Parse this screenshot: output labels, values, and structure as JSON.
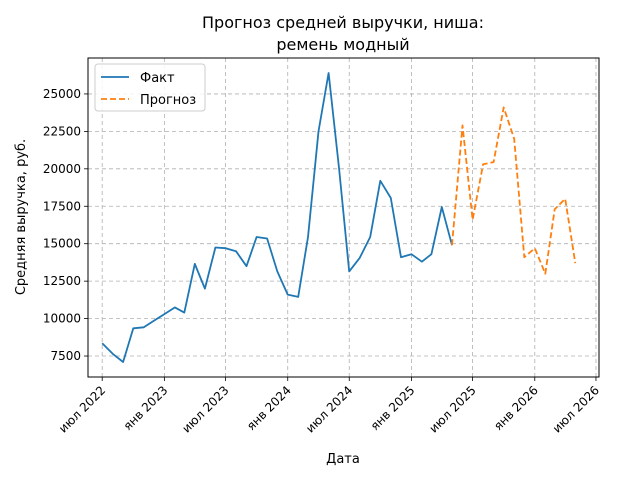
{
  "chart_data": {
    "type": "line",
    "title_line1": "Прогноз средней выручки, ниша:",
    "title_line2": "ремень модный",
    "xlabel": "Дата",
    "ylabel": "Средняя выручка, руб.",
    "grid": true,
    "legend_position": "top-left",
    "colors": {
      "fact": "#1f77b4",
      "forecast": "#ff7f0e",
      "grid": "#b0b0b0"
    },
    "x_ticks": [
      {
        "date": "2022-07-01",
        "label": "июл 2022"
      },
      {
        "date": "2023-01-01",
        "label": "янв 2023"
      },
      {
        "date": "2023-07-01",
        "label": "июл 2023"
      },
      {
        "date": "2024-01-01",
        "label": "янв 2024"
      },
      {
        "date": "2024-07-01",
        "label": "июл 2024"
      },
      {
        "date": "2025-01-01",
        "label": "янв 2025"
      },
      {
        "date": "2025-07-01",
        "label": "июл 2025"
      },
      {
        "date": "2026-01-01",
        "label": "янв 2026"
      },
      {
        "date": "2026-07-01",
        "label": "июл 2026"
      }
    ],
    "y_ticks": [
      {
        "value": 7500,
        "label": "7500"
      },
      {
        "value": 10000,
        "label": "10000"
      },
      {
        "value": 12500,
        "label": "12500"
      },
      {
        "value": 15000,
        "label": "15000"
      },
      {
        "value": 17500,
        "label": "17500"
      },
      {
        "value": 20000,
        "label": "20000"
      },
      {
        "value": 22500,
        "label": "22500"
      },
      {
        "value": 25000,
        "label": "25000"
      }
    ],
    "xlim": [
      "2022-05-20",
      "2026-07-10"
    ],
    "ylim": [
      6100,
      27400
    ],
    "series": [
      {
        "name": "Факт",
        "style": "solid",
        "x": [
          "2022-07-01",
          "2022-08-01",
          "2022-09-01",
          "2022-10-01",
          "2022-11-01",
          "2022-12-01",
          "2023-01-01",
          "2023-02-01",
          "2023-03-01",
          "2023-04-01",
          "2023-05-01",
          "2023-06-01",
          "2023-07-01",
          "2023-08-01",
          "2023-09-01",
          "2023-10-01",
          "2023-11-01",
          "2023-12-01",
          "2024-01-01",
          "2024-02-01",
          "2024-03-01",
          "2024-04-01",
          "2024-05-01",
          "2024-06-01",
          "2024-07-01",
          "2024-08-01",
          "2024-09-01",
          "2024-10-01",
          "2024-11-01",
          "2024-12-01",
          "2025-01-01",
          "2025-02-01",
          "2025-03-01",
          "2025-04-01",
          "2025-05-01"
        ],
        "y": [
          8350,
          7650,
          7100,
          9350,
          9420,
          9850,
          10300,
          10750,
          10400,
          13650,
          12000,
          14750,
          14700,
          14500,
          13500,
          15450,
          15350,
          13150,
          11600,
          11450,
          15450,
          22500,
          26400,
          20000,
          13150,
          14050,
          15450,
          19200,
          18050,
          14100,
          14300,
          13800,
          14300,
          17450,
          14900
        ]
      },
      {
        "name": "Прогноз",
        "style": "dashed",
        "x": [
          "2025-05-01",
          "2025-06-01",
          "2025-07-01",
          "2025-08-01",
          "2025-09-01",
          "2025-10-01",
          "2025-11-01",
          "2025-12-01",
          "2026-01-01",
          "2026-02-01",
          "2026-03-01",
          "2026-04-01",
          "2026-05-01"
        ],
        "y": [
          14900,
          22900,
          16600,
          20300,
          20450,
          24100,
          22000,
          14100,
          14700,
          13000,
          17300,
          18000,
          13700
        ]
      }
    ]
  }
}
